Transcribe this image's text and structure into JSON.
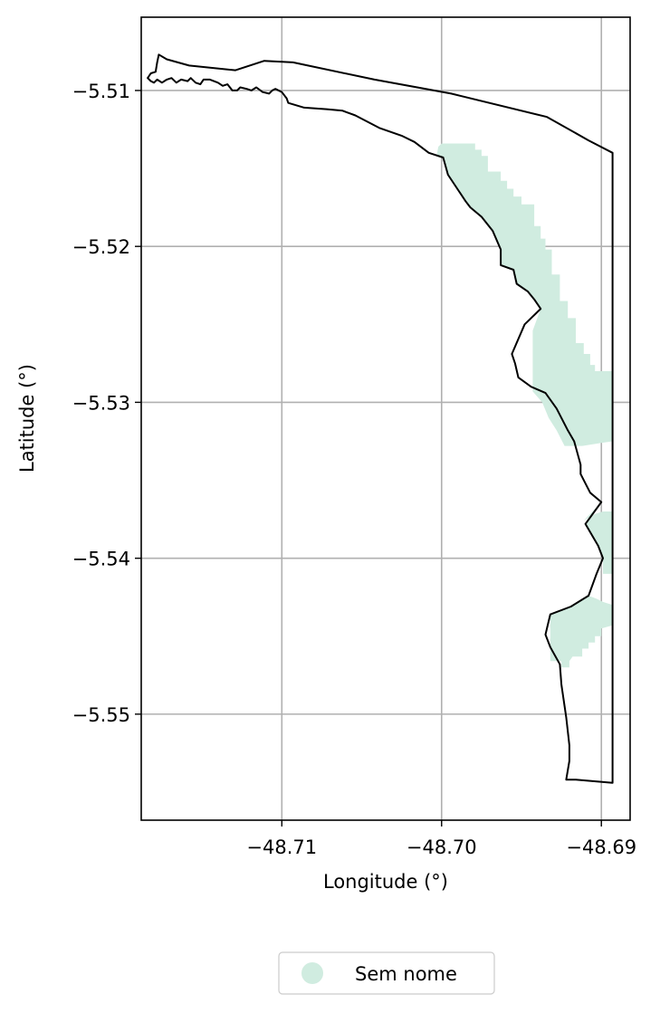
{
  "chart_data": {
    "type": "map",
    "title": "",
    "xlabel": "Longitude (°)",
    "ylabel": "Latitude (°)",
    "xlim": [
      -48.7188,
      -48.6882
    ],
    "ylim": [
      -5.5568,
      -5.5053
    ],
    "xticks": [
      -48.71,
      -48.7,
      -48.69
    ],
    "xtick_labels": [
      "−48.71",
      "−48.70",
      "−48.69"
    ],
    "yticks": [
      -5.51,
      -5.52,
      -5.53,
      -5.54,
      -5.55
    ],
    "ytick_labels": [
      "−5.51",
      "−5.52",
      "−5.53",
      "−5.54",
      "−5.55"
    ],
    "grid": true,
    "legend_position": "bottom-center",
    "colors": {
      "boundary": "#000000",
      "fill": "#d0ece0",
      "grid": "#b0b0b0"
    },
    "legend": [
      {
        "label": "Sem nome",
        "color": "#d0ece0"
      }
    ],
    "boundary": [
      [
        -48.7177,
        -5.5077
      ],
      [
        -48.7172,
        -5.508
      ],
      [
        -48.7158,
        -5.5084
      ],
      [
        -48.7129,
        -5.5087
      ],
      [
        -48.7111,
        -5.5081
      ],
      [
        -48.7093,
        -5.5082
      ],
      [
        -48.7042,
        -5.5093
      ],
      [
        -48.6994,
        -5.5102
      ],
      [
        -48.6934,
        -5.5117
      ],
      [
        -48.6908,
        -5.5132
      ],
      [
        -48.6893,
        -5.514
      ],
      [
        -48.6893,
        -5.5329
      ],
      [
        -48.6893,
        -5.55
      ],
      [
        -48.6893,
        -5.5544
      ],
      [
        -48.6916,
        -5.5542
      ],
      [
        -48.6922,
        -5.5542
      ],
      [
        -48.692,
        -5.553
      ],
      [
        -48.692,
        -5.552
      ],
      [
        -48.6922,
        -5.5502
      ],
      [
        -48.6925,
        -5.5481
      ],
      [
        -48.6926,
        -5.5468
      ],
      [
        -48.6932,
        -5.5457
      ],
      [
        -48.6935,
        -5.5449
      ],
      [
        -48.6932,
        -5.5436
      ],
      [
        -48.6919,
        -5.5431
      ],
      [
        -48.6908,
        -5.5424
      ],
      [
        -48.6903,
        -5.541
      ],
      [
        -48.6899,
        -5.54
      ],
      [
        -48.6902,
        -5.5392
      ],
      [
        -48.691,
        -5.5378
      ],
      [
        -48.69,
        -5.5364
      ],
      [
        -48.6907,
        -5.5358
      ],
      [
        -48.6913,
        -5.5346
      ],
      [
        -48.6913,
        -5.534
      ],
      [
        -48.6917,
        -5.5325
      ],
      [
        -48.6921,
        -5.5318
      ],
      [
        -48.6928,
        -5.5304
      ],
      [
        -48.6935,
        -5.5294
      ],
      [
        -48.6944,
        -5.529
      ],
      [
        -48.6952,
        -5.5284
      ],
      [
        -48.6954,
        -5.5275
      ],
      [
        -48.6956,
        -5.5269
      ],
      [
        -48.6948,
        -5.525
      ],
      [
        -48.6938,
        -5.524
      ],
      [
        -48.6942,
        -5.5234
      ],
      [
        -48.6946,
        -5.5229
      ],
      [
        -48.6953,
        -5.5224
      ],
      [
        -48.6955,
        -5.5215
      ],
      [
        -48.6963,
        -5.5212
      ],
      [
        -48.6963,
        -5.5202
      ],
      [
        -48.6968,
        -5.519
      ],
      [
        -48.6975,
        -5.5181
      ],
      [
        -48.6982,
        -5.5175
      ],
      [
        -48.6985,
        -5.5171
      ],
      [
        -48.6996,
        -5.5154
      ],
      [
        -48.6999,
        -5.5143
      ],
      [
        -48.7008,
        -5.514
      ],
      [
        -48.7017,
        -5.5133
      ],
      [
        -48.7025,
        -5.5129
      ],
      [
        -48.7039,
        -5.5124
      ],
      [
        -48.7054,
        -5.5116
      ],
      [
        -48.7062,
        -5.5113
      ],
      [
        -48.7072,
        -5.5112
      ],
      [
        -48.7086,
        -5.5111
      ],
      [
        -48.7096,
        -5.5108
      ],
      [
        -48.7097,
        -5.5105
      ],
      [
        -48.71,
        -5.5101
      ],
      [
        -48.7104,
        -5.5099
      ],
      [
        -48.7106,
        -5.51
      ],
      [
        -48.7108,
        -5.5102
      ],
      [
        -48.7112,
        -5.5101
      ],
      [
        -48.7116,
        -5.5098
      ],
      [
        -48.7119,
        -5.51
      ],
      [
        -48.7122,
        -5.5099
      ],
      [
        -48.7126,
        -5.5098
      ],
      [
        -48.7128,
        -5.51
      ],
      [
        -48.7131,
        -5.51
      ],
      [
        -48.7134,
        -5.5096
      ],
      [
        -48.7137,
        -5.5097
      ],
      [
        -48.714,
        -5.5095
      ],
      [
        -48.7145,
        -5.5093
      ],
      [
        -48.7149,
        -5.5093
      ],
      [
        -48.7151,
        -5.5096
      ],
      [
        -48.7154,
        -5.5095
      ],
      [
        -48.7157,
        -5.5092
      ],
      [
        -48.7159,
        -5.5094
      ],
      [
        -48.7163,
        -5.5093
      ],
      [
        -48.7166,
        -5.5095
      ],
      [
        -48.7169,
        -5.5092
      ],
      [
        -48.7172,
        -5.5093
      ],
      [
        -48.7175,
        -5.5095
      ],
      [
        -48.7178,
        -5.5093
      ],
      [
        -48.718,
        -5.5095
      ],
      [
        -48.7182,
        -5.5094
      ],
      [
        -48.7184,
        -5.5092
      ],
      [
        -48.7182,
        -5.5089
      ],
      [
        -48.7179,
        -5.5088
      ],
      [
        -48.7178,
        -5.5082
      ],
      [
        -48.7177,
        -5.5077
      ]
    ],
    "sem_nome_regions": [
      [
        [
          -48.7,
          -5.5134
        ],
        [
          -48.6979,
          -5.5134
        ],
        [
          -48.6979,
          -5.5138
        ],
        [
          -48.6975,
          -5.5138
        ],
        [
          -48.6975,
          -5.5142
        ],
        [
          -48.6971,
          -5.5142
        ],
        [
          -48.6971,
          -5.5152
        ],
        [
          -48.6963,
          -5.5152
        ],
        [
          -48.6963,
          -5.5158
        ],
        [
          -48.6959,
          -5.5158
        ],
        [
          -48.6959,
          -5.5163
        ],
        [
          -48.6955,
          -5.5163
        ],
        [
          -48.6955,
          -5.5168
        ],
        [
          -48.695,
          -5.5168
        ],
        [
          -48.695,
          -5.5173
        ],
        [
          -48.6942,
          -5.5173
        ],
        [
          -48.6942,
          -5.5187
        ],
        [
          -48.6938,
          -5.5187
        ],
        [
          -48.6938,
          -5.5195
        ],
        [
          -48.6935,
          -5.5195
        ],
        [
          -48.6935,
          -5.5202
        ],
        [
          -48.6931,
          -5.5202
        ],
        [
          -48.6931,
          -5.5218
        ],
        [
          -48.6926,
          -5.5218
        ],
        [
          -48.6926,
          -5.5235
        ],
        [
          -48.6921,
          -5.5235
        ],
        [
          -48.6921,
          -5.5246
        ],
        [
          -48.6916,
          -5.5246
        ],
        [
          -48.6916,
          -5.5262
        ],
        [
          -48.6911,
          -5.5262
        ],
        [
          -48.6911,
          -5.5269
        ],
        [
          -48.6907,
          -5.5269
        ],
        [
          -48.6907,
          -5.5276
        ],
        [
          -48.6904,
          -5.5276
        ],
        [
          -48.6904,
          -5.528
        ],
        [
          -48.6893,
          -5.528
        ],
        [
          -48.6893,
          -5.5325
        ],
        [
          -48.69,
          -5.5326
        ],
        [
          -48.6912,
          -5.5328
        ],
        [
          -48.6923,
          -5.5328
        ],
        [
          -48.6928,
          -5.5318
        ],
        [
          -48.6933,
          -5.531
        ],
        [
          -48.6937,
          -5.53
        ],
        [
          -48.6943,
          -5.5293
        ],
        [
          -48.6943,
          -5.5254
        ],
        [
          -48.6938,
          -5.524
        ],
        [
          -48.6946,
          -5.5229
        ],
        [
          -48.6953,
          -5.5224
        ],
        [
          -48.6955,
          -5.5215
        ],
        [
          -48.6963,
          -5.5212
        ],
        [
          -48.6963,
          -5.5202
        ],
        [
          -48.6968,
          -5.519
        ],
        [
          -48.6975,
          -5.5181
        ],
        [
          -48.6982,
          -5.5175
        ],
        [
          -48.6985,
          -5.5171
        ],
        [
          -48.6996,
          -5.5154
        ],
        [
          -48.6999,
          -5.5143
        ],
        [
          -48.7003,
          -5.5141
        ],
        [
          -48.7002,
          -5.5136
        ],
        [
          -48.7,
          -5.5134
        ]
      ],
      [
        [
          -48.6893,
          -5.537
        ],
        [
          -48.6899,
          -5.537
        ],
        [
          -48.6905,
          -5.5372
        ],
        [
          -48.6911,
          -5.5376
        ],
        [
          -48.69,
          -5.5364
        ],
        [
          -48.691,
          -5.5378
        ],
        [
          -48.6902,
          -5.5392
        ],
        [
          -48.6899,
          -5.54
        ],
        [
          -48.6899,
          -5.541
        ],
        [
          -48.6893,
          -5.541
        ]
      ],
      [
        [
          -48.693,
          -5.5435
        ],
        [
          -48.692,
          -5.5431
        ],
        [
          -48.6915,
          -5.5428
        ],
        [
          -48.6908,
          -5.5424
        ],
        [
          -48.6903,
          -5.5426
        ],
        [
          -48.6899,
          -5.5428
        ],
        [
          -48.6893,
          -5.543
        ],
        [
          -48.6893,
          -5.5443
        ],
        [
          -48.69,
          -5.5445
        ],
        [
          -48.69,
          -5.545
        ],
        [
          -48.6904,
          -5.545
        ],
        [
          -48.6904,
          -5.5454
        ],
        [
          -48.6908,
          -5.5454
        ],
        [
          -48.6908,
          -5.5458
        ],
        [
          -48.6912,
          -5.5458
        ],
        [
          -48.6912,
          -5.5463
        ],
        [
          -48.6918,
          -5.5463
        ],
        [
          -48.692,
          -5.5466
        ],
        [
          -48.692,
          -5.547
        ],
        [
          -48.6925,
          -5.547
        ],
        [
          -48.6925,
          -5.5466
        ],
        [
          -48.6932,
          -5.5466
        ],
        [
          -48.6932,
          -5.5445
        ],
        [
          -48.6932,
          -5.5436
        ],
        [
          -48.693,
          -5.5435
        ]
      ]
    ]
  }
}
